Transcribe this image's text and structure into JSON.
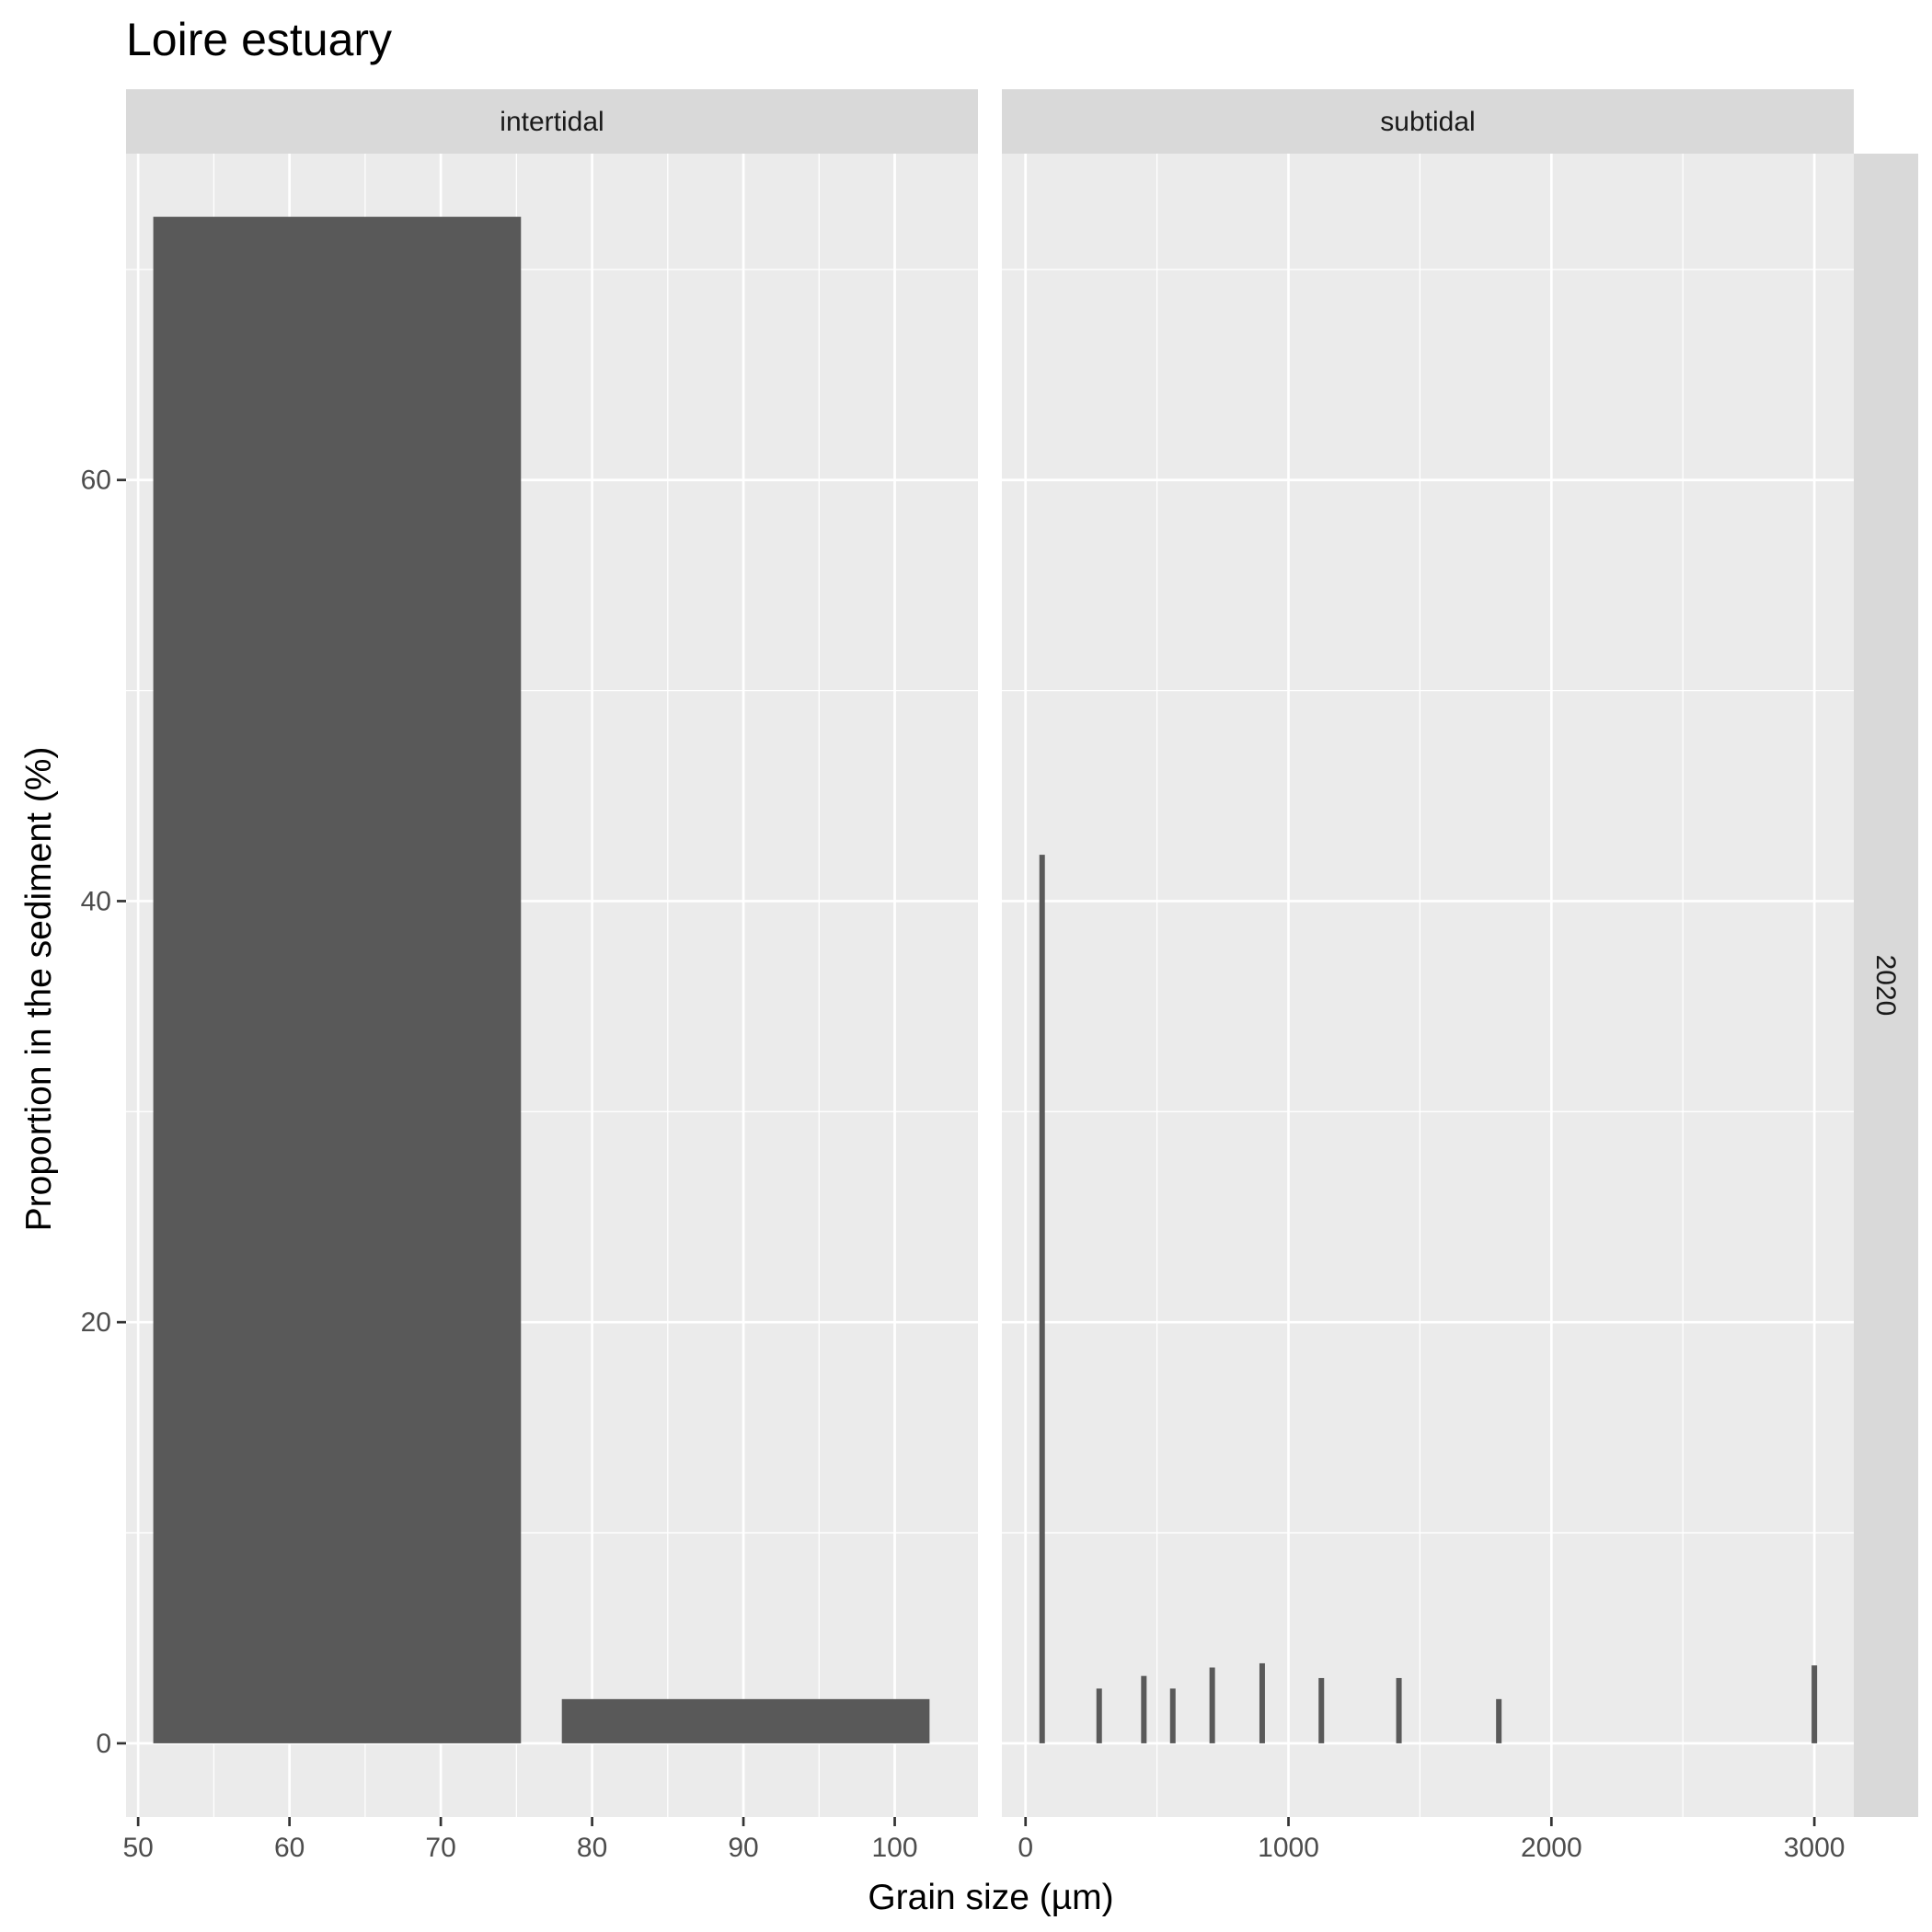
{
  "chart_data": {
    "type": "bar",
    "title": "Loire estuary",
    "xlabel": "Grain size (µm)",
    "ylabel": "Proportion in the sediment (%)",
    "row_strip": "2020",
    "grid": true,
    "ylim": [
      -3.5,
      75.5
    ],
    "yticks": [
      0,
      20,
      40,
      60
    ],
    "colors": {
      "panel": "#ebebeb",
      "strip": "#d9d9d9",
      "bar": "#595959",
      "grid": "#ffffff"
    },
    "panels": [
      {
        "strip": "intertidal",
        "xlim": [
          49.2,
          105.5
        ],
        "xticks": [
          50,
          60,
          70,
          80,
          90,
          100
        ],
        "minor_xticks": [
          55,
          65,
          75,
          85,
          95
        ],
        "bars": [
          {
            "x0": 51,
            "x1": 75.3,
            "value": 72.5
          },
          {
            "x0": 78,
            "x1": 102.3,
            "value": 2.1
          }
        ]
      },
      {
        "strip": "subtidal",
        "xlim": [
          -90,
          3150
        ],
        "xticks": [
          0,
          1000,
          2000,
          3000
        ],
        "minor_xticks": [
          500,
          1500,
          2500
        ],
        "bars": [
          {
            "x": 63,
            "value": 42.2
          },
          {
            "x": 280,
            "value": 2.6
          },
          {
            "x": 450,
            "value": 3.2
          },
          {
            "x": 560,
            "value": 2.6
          },
          {
            "x": 710,
            "value": 3.6
          },
          {
            "x": 900,
            "value": 3.8
          },
          {
            "x": 1125,
            "value": 3.1
          },
          {
            "x": 1420,
            "value": 3.1
          },
          {
            "x": 1800,
            "value": 2.1
          },
          {
            "x": 3000,
            "value": 3.7
          }
        ]
      }
    ]
  }
}
